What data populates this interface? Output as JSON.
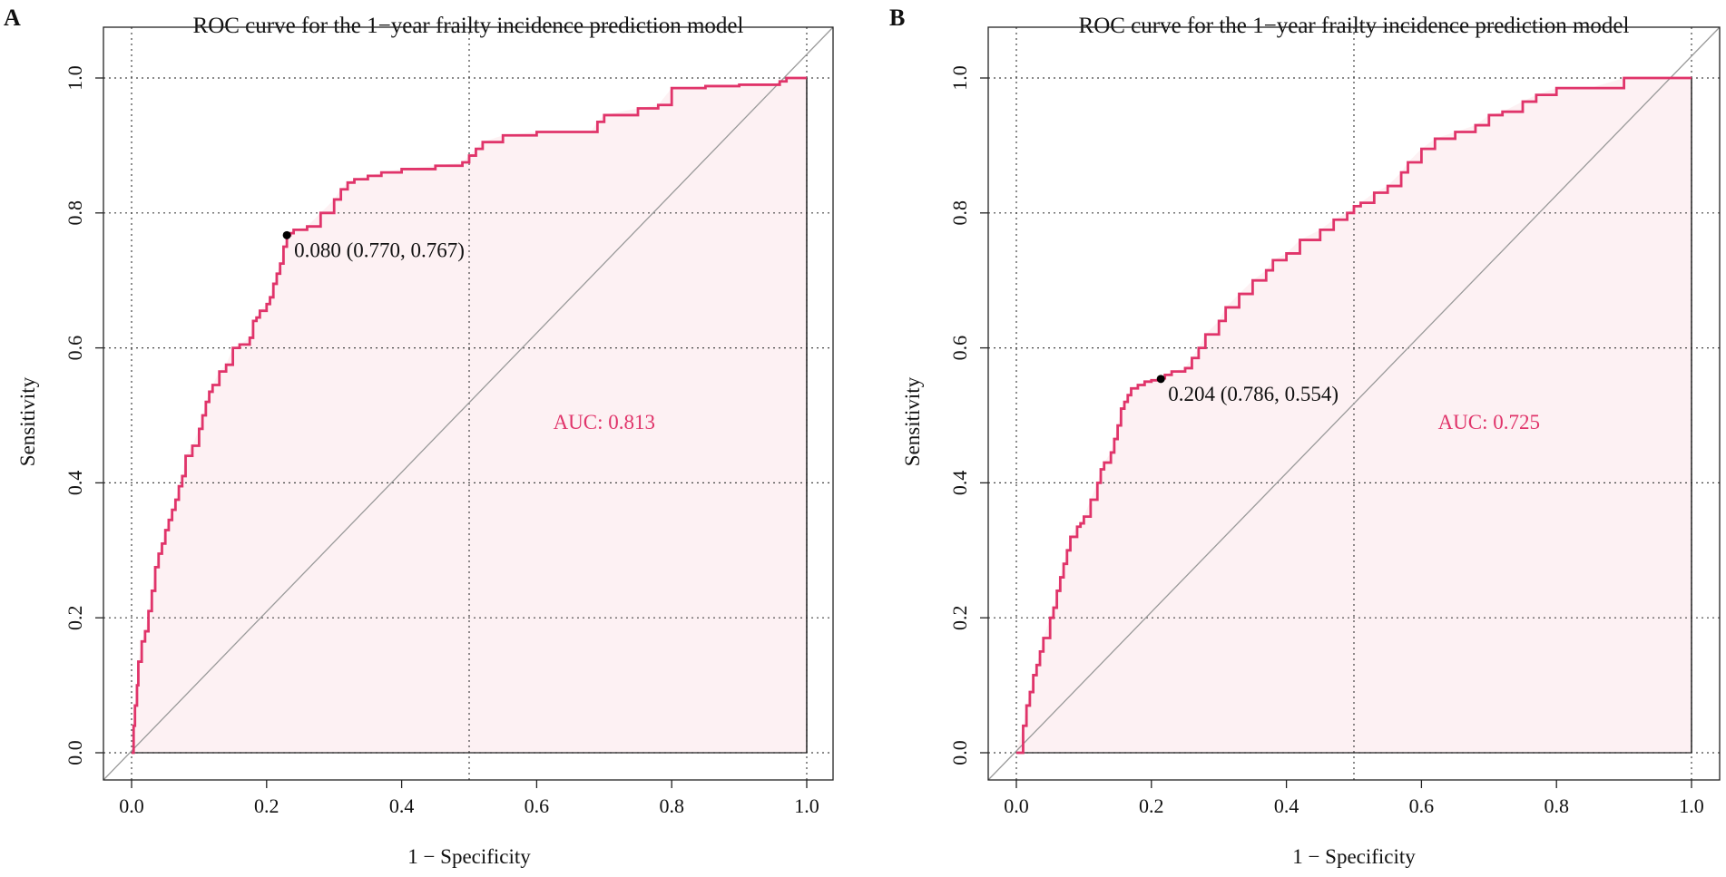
{
  "colors": {
    "curve": "#e0346a",
    "fill": "#fdf1f3",
    "grid": "#444444",
    "diagonal": "#9a9a9a",
    "frame": "#222222"
  },
  "chart_data": [
    {
      "panel": "A",
      "type": "line",
      "title": "ROC curve for the 1−year frailty incidence prediction model",
      "xlabel": "1 − Specificity",
      "ylabel": "Sensitivity",
      "xlim": [
        0,
        1
      ],
      "ylim": [
        0,
        1
      ],
      "x_ticks": [
        "0.0",
        "0.2",
        "0.4",
        "0.6",
        "0.8",
        "1.0"
      ],
      "y_ticks": [
        "0.0",
        "0.2",
        "0.4",
        "0.6",
        "0.8",
        "1.0"
      ],
      "grid_x": [
        0,
        0.5,
        1
      ],
      "grid_y": [
        0,
        0.2,
        0.4,
        0.6,
        0.8,
        1
      ],
      "auc_label": "AUC: 0.813",
      "auc": 0.813,
      "threshold_point": {
        "x": 0.23,
        "y": 0.767,
        "label": "0.080 (0.770, 0.767)"
      },
      "x": [
        0,
        0.003,
        0.005,
        0.008,
        0.01,
        0.015,
        0.02,
        0.025,
        0.03,
        0.035,
        0.04,
        0.045,
        0.05,
        0.055,
        0.06,
        0.065,
        0.07,
        0.075,
        0.08,
        0.09,
        0.1,
        0.105,
        0.11,
        0.115,
        0.12,
        0.13,
        0.14,
        0.15,
        0.16,
        0.175,
        0.18,
        0.185,
        0.19,
        0.2,
        0.205,
        0.21,
        0.215,
        0.22,
        0.225,
        0.23,
        0.235,
        0.24,
        0.26,
        0.28,
        0.3,
        0.31,
        0.32,
        0.33,
        0.35,
        0.37,
        0.4,
        0.45,
        0.49,
        0.5,
        0.51,
        0.52,
        0.55,
        0.6,
        0.68,
        0.69,
        0.7,
        0.75,
        0.78,
        0.8,
        0.85,
        0.9,
        0.95,
        0.96,
        0.97,
        1
      ],
      "y": [
        0,
        0.04,
        0.07,
        0.1,
        0.135,
        0.165,
        0.18,
        0.21,
        0.24,
        0.275,
        0.295,
        0.31,
        0.33,
        0.345,
        0.36,
        0.375,
        0.395,
        0.41,
        0.44,
        0.455,
        0.48,
        0.5,
        0.52,
        0.535,
        0.545,
        0.565,
        0.575,
        0.6,
        0.605,
        0.615,
        0.64,
        0.645,
        0.655,
        0.665,
        0.675,
        0.695,
        0.71,
        0.725,
        0.75,
        0.767,
        0.77,
        0.775,
        0.78,
        0.8,
        0.82,
        0.835,
        0.845,
        0.85,
        0.855,
        0.86,
        0.865,
        0.87,
        0.875,
        0.885,
        0.895,
        0.905,
        0.915,
        0.92,
        0.92,
        0.935,
        0.945,
        0.955,
        0.96,
        0.985,
        0.988,
        0.99,
        0.99,
        0.995,
        1,
        1
      ]
    },
    {
      "panel": "B",
      "type": "line",
      "title": "ROC curve for the 1−year frailty incidence prediction model",
      "xlabel": "1 − Specificity",
      "ylabel": "Sensitivity",
      "xlim": [
        0,
        1
      ],
      "ylim": [
        0,
        1
      ],
      "x_ticks": [
        "0.0",
        "0.2",
        "0.4",
        "0.6",
        "0.8",
        "1.0"
      ],
      "y_ticks": [
        "0.0",
        "0.2",
        "0.4",
        "0.6",
        "0.8",
        "1.0"
      ],
      "grid_x": [
        0,
        0.5,
        1
      ],
      "grid_y": [
        0,
        0.2,
        0.4,
        0.6,
        0.8,
        1
      ],
      "auc_label": "AUC: 0.725",
      "auc": 0.725,
      "threshold_point": {
        "x": 0.214,
        "y": 0.554,
        "label": "0.204 (0.786, 0.554)"
      },
      "x": [
        0,
        0.01,
        0.015,
        0.02,
        0.025,
        0.03,
        0.035,
        0.04,
        0.05,
        0.055,
        0.06,
        0.065,
        0.07,
        0.075,
        0.08,
        0.09,
        0.095,
        0.1,
        0.11,
        0.12,
        0.125,
        0.13,
        0.14,
        0.145,
        0.15,
        0.155,
        0.16,
        0.165,
        0.17,
        0.18,
        0.19,
        0.2,
        0.21,
        0.214,
        0.22,
        0.23,
        0.25,
        0.26,
        0.27,
        0.28,
        0.3,
        0.31,
        0.33,
        0.35,
        0.37,
        0.38,
        0.4,
        0.42,
        0.45,
        0.47,
        0.49,
        0.5,
        0.51,
        0.53,
        0.55,
        0.57,
        0.58,
        0.6,
        0.62,
        0.65,
        0.68,
        0.7,
        0.72,
        0.75,
        0.77,
        0.8,
        0.85,
        0.9,
        0.95,
        0.98,
        1
      ],
      "y": [
        0,
        0.04,
        0.07,
        0.09,
        0.115,
        0.13,
        0.15,
        0.17,
        0.2,
        0.215,
        0.24,
        0.26,
        0.28,
        0.3,
        0.32,
        0.335,
        0.34,
        0.35,
        0.375,
        0.4,
        0.42,
        0.43,
        0.445,
        0.465,
        0.485,
        0.51,
        0.52,
        0.53,
        0.54,
        0.545,
        0.55,
        0.552,
        0.554,
        0.555,
        0.56,
        0.565,
        0.57,
        0.585,
        0.6,
        0.62,
        0.64,
        0.66,
        0.68,
        0.7,
        0.715,
        0.73,
        0.74,
        0.76,
        0.775,
        0.79,
        0.8,
        0.81,
        0.815,
        0.83,
        0.84,
        0.86,
        0.875,
        0.895,
        0.91,
        0.92,
        0.93,
        0.945,
        0.95,
        0.965,
        0.975,
        0.985,
        0.985,
        1,
        1,
        1,
        1
      ]
    }
  ]
}
